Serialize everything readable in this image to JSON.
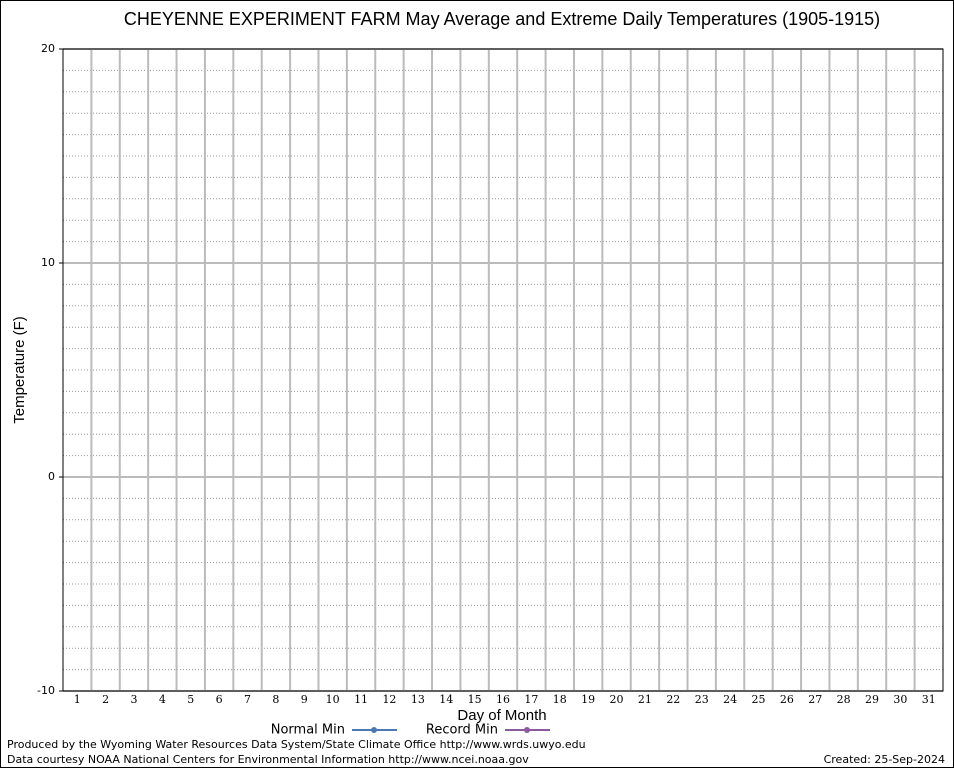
{
  "chart_data": {
    "type": "line",
    "title": "CHEYENNE EXPERIMENT FARM May Average and Extreme Daily Temperatures (1905-1915)",
    "x_label": "Day of Month",
    "y_label": "Temperature (F)",
    "categories": [
      "1",
      "2",
      "3",
      "4",
      "5",
      "6",
      "7",
      "8",
      "9",
      "10",
      "11",
      "12",
      "13",
      "14",
      "15",
      "16",
      "17",
      "18",
      "19",
      "20",
      "21",
      "22",
      "23",
      "24",
      "25",
      "26",
      "27",
      "28",
      "29",
      "30",
      "31"
    ],
    "series": [
      {
        "name": "Normal Min",
        "color": "#4a79b4",
        "values": [
          null,
          null,
          null,
          null,
          null,
          null,
          null,
          null,
          null,
          null,
          null,
          null,
          null,
          null,
          null,
          null,
          null,
          null,
          null,
          null,
          null,
          null,
          null,
          null,
          null,
          null,
          null,
          null,
          null,
          null,
          null
        ]
      },
      {
        "name": "Record Min",
        "color": "#8b5a9c",
        "values": [
          null,
          null,
          null,
          null,
          null,
          null,
          null,
          null,
          null,
          null,
          null,
          null,
          null,
          null,
          null,
          null,
          null,
          null,
          null,
          null,
          null,
          null,
          null,
          null,
          null,
          null,
          null,
          null,
          null,
          null,
          null
        ]
      }
    ],
    "ylim": [
      -10,
      20
    ],
    "yticks": [
      -10,
      0,
      10,
      20
    ],
    "grid": true,
    "footer_left": [
      "Produced by the Wyoming Water Resources Data System/State Climate Office http://www.wrds.uwyo.edu",
      "Data courtesy NOAA National Centers for Environmental Information http://www.ncei.noaa.gov"
    ],
    "footer_right": "Created:  25-Sep-2024"
  }
}
